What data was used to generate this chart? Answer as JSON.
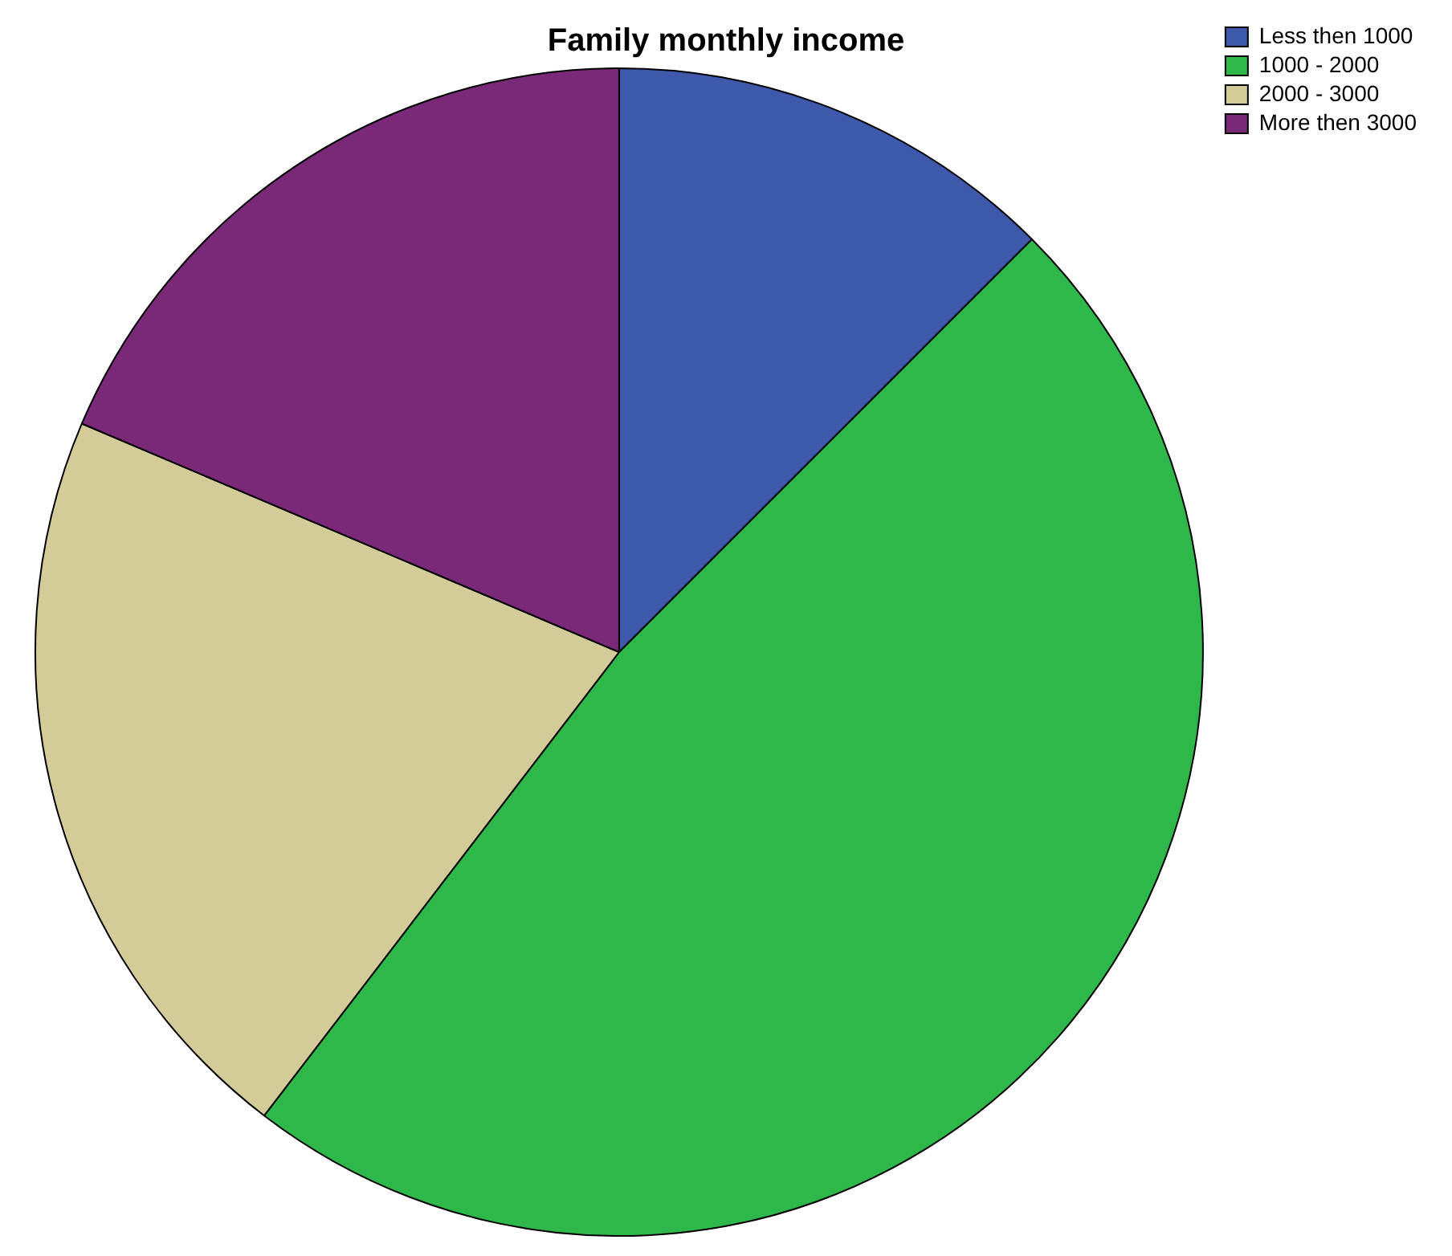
{
  "chart_data": {
    "type": "pie",
    "title": "Family monthly income",
    "categories": [
      "Less then 1000",
      "1000 - 2000",
      "2000 - 3000",
      "More then 3000"
    ],
    "values": [
      12.5,
      47.9,
      21.0,
      18.6
    ],
    "colors": [
      "#3e58ac",
      "#2eb84a",
      "#d4cc98",
      "#7a2878"
    ],
    "legend": "top right"
  }
}
